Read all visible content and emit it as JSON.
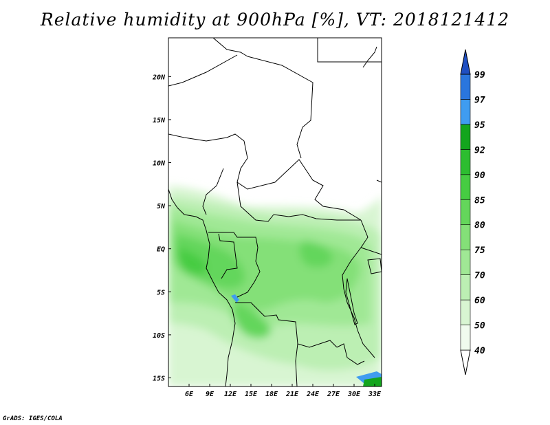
{
  "title": "Relative humidity at 900hPa [%], VT: 2018121412",
  "credit": "GrADS: IGES/COLA",
  "map": {
    "lon_range": [
      3,
      34
    ],
    "lat_range": [
      -16,
      24.5
    ],
    "x_ticks": [
      "6E",
      "9E",
      "12E",
      "15E",
      "18E",
      "21E",
      "24E",
      "27E",
      "30E",
      "33E"
    ],
    "x_tick_values": [
      6,
      9,
      12,
      15,
      18,
      21,
      24,
      27,
      30,
      33
    ],
    "y_ticks": [
      "20N",
      "15N",
      "10N",
      "5N",
      "EQ",
      "5S",
      "10S",
      "15S"
    ],
    "y_tick_values": [
      20,
      15,
      10,
      5,
      0,
      -5,
      -10,
      -15
    ]
  },
  "colorbar": {
    "levels": [
      "40",
      "50",
      "60",
      "70",
      "75",
      "80",
      "85",
      "90",
      "92",
      "95",
      "97",
      "99"
    ],
    "colors": [
      "#f0fbee",
      "#d8f5d2",
      "#bcefb3",
      "#a0e895",
      "#84e078",
      "#64d65b",
      "#46cc42",
      "#2dbd30",
      "#13a51d",
      "#3f9cf0",
      "#2a76de",
      "#1f4fc2"
    ]
  }
}
